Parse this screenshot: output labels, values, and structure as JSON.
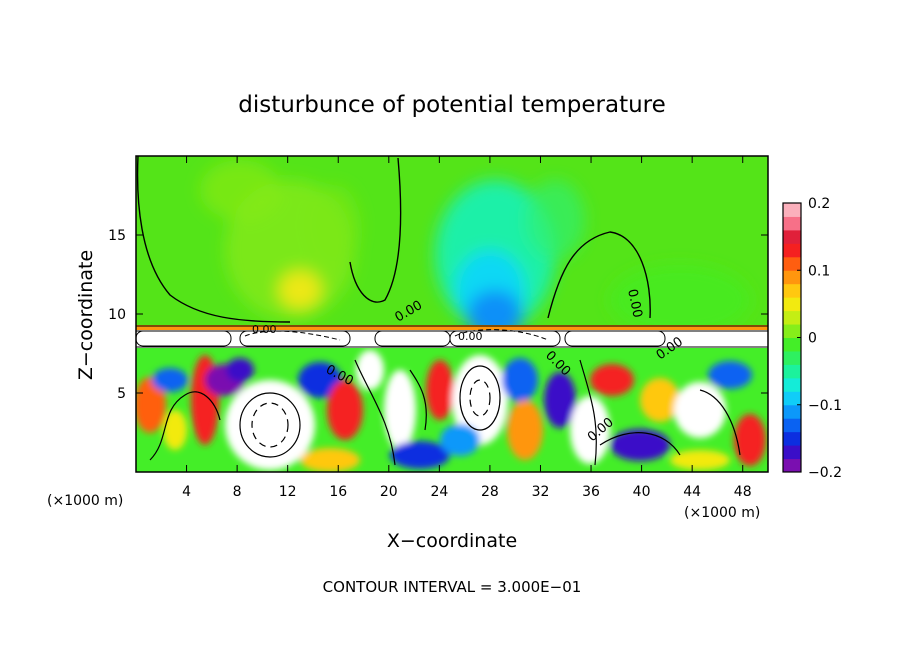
{
  "chart_data": {
    "type": "heatmap",
    "title": "disturbunce of potential temperature",
    "xlabel": "X−coordinate",
    "ylabel": "Z−coordinate",
    "x_unit_left": "(×1000 m)",
    "x_unit_right": "(×1000 m)",
    "xlim": [
      0,
      50
    ],
    "ylim": [
      0,
      20
    ],
    "x_ticks": [
      4,
      8,
      12,
      16,
      20,
      24,
      28,
      32,
      36,
      40,
      44,
      48
    ],
    "y_ticks": [
      5,
      10,
      15
    ],
    "colorbar": {
      "vmin": -0.2,
      "vmax": 0.2,
      "ticks": [
        0.2,
        0.1,
        0,
        -0.1,
        -0.2
      ],
      "tick_labels": [
        "0.2",
        "0.1",
        "0",
        "−0.1",
        "−0.2"
      ],
      "colors": [
        "#7a0fb0",
        "#3a0ec8",
        "#0c2ee0",
        "#0a62f2",
        "#0c98fa",
        "#10cdf8",
        "#14ecd8",
        "#1cf29c",
        "#2ef060",
        "#44ee28",
        "#86ee1a",
        "#c4ee14",
        "#f2ea10",
        "#ffc810",
        "#ff960e",
        "#ff5e10",
        "#f52020",
        "#e0203a",
        "#f77088",
        "#fbb0bc"
      ]
    },
    "contour_labels": [
      "0.00",
      "0.00",
      "0.00",
      "0.00",
      "0.00",
      "0.00",
      "0.00",
      "0.00"
    ],
    "footer": "CONTOUR INTERVAL = 3.000E−01"
  }
}
